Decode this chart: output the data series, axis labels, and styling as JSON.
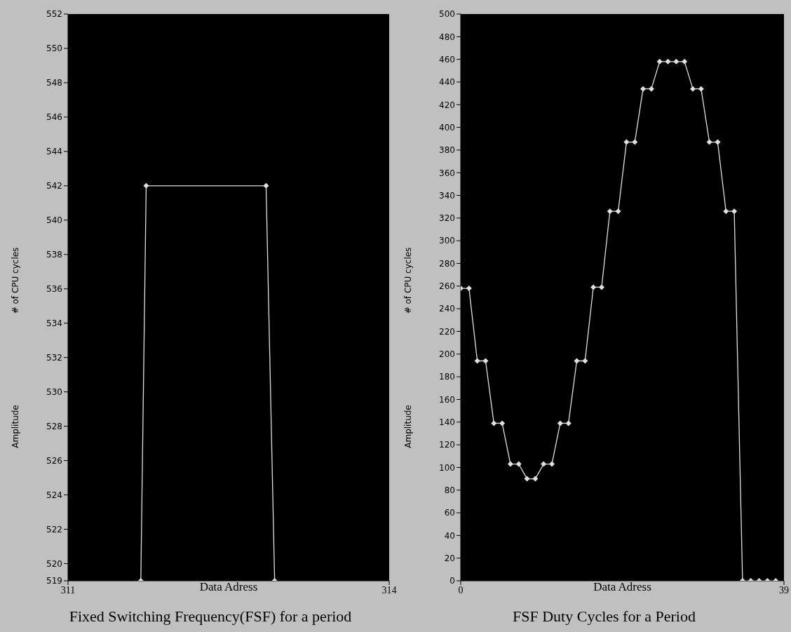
{
  "chart_data": [
    {
      "type": "line",
      "title": "Fixed Switching Frequency(FSF) for a period",
      "xlabel": "Data Adress",
      "ylabel": "# of CPU cycles",
      "annotations": [
        "Amplitude"
      ],
      "x": [
        311.68,
        311.73,
        312.85,
        312.93
      ],
      "series": [
        {
          "color": "#e0e0e0",
          "values": [
            519,
            542,
            542,
            519
          ]
        }
      ],
      "xlim": [
        311,
        314
      ],
      "xticks": [
        311,
        314
      ],
      "ylim": [
        519,
        552
      ],
      "yticks": [
        519,
        520,
        522,
        524,
        526,
        528,
        530,
        532,
        534,
        536,
        538,
        540,
        542,
        544,
        546,
        548,
        550,
        552
      ],
      "marker": "diamond",
      "grid": false
    },
    {
      "type": "line",
      "title": "FSF Duty Cycles for a Period",
      "xlabel": "Data Adress",
      "ylabel": "# of CPU cycles",
      "annotations": [
        "Amplitude"
      ],
      "x": [
        0,
        1,
        2,
        3,
        4,
        5,
        6,
        7,
        8,
        9,
        10,
        11,
        12,
        13,
        14,
        15,
        16,
        17,
        18,
        19,
        20,
        21,
        22,
        23,
        24,
        25,
        26,
        27,
        28,
        29,
        30,
        31,
        32,
        33,
        34,
        35,
        36,
        37,
        38
      ],
      "series": [
        {
          "color": "#e0e0e0",
          "values": [
            258,
            258,
            194,
            194,
            139,
            139,
            103,
            103,
            90,
            90,
            103,
            103,
            139,
            139,
            194,
            194,
            259,
            259,
            326,
            326,
            387,
            387,
            434,
            434,
            458,
            458,
            458,
            458,
            434,
            434,
            387,
            387,
            326,
            326,
            0,
            0,
            0,
            0,
            0
          ]
        }
      ],
      "xlim": [
        0,
        39
      ],
      "xticks": [
        0,
        39
      ],
      "ylim": [
        0,
        500
      ],
      "yticks": [
        0,
        20,
        40,
        60,
        80,
        100,
        120,
        140,
        160,
        180,
        200,
        220,
        240,
        260,
        280,
        300,
        320,
        340,
        360,
        380,
        400,
        420,
        440,
        460,
        480,
        500
      ],
      "marker": "diamond",
      "grid": false
    }
  ]
}
